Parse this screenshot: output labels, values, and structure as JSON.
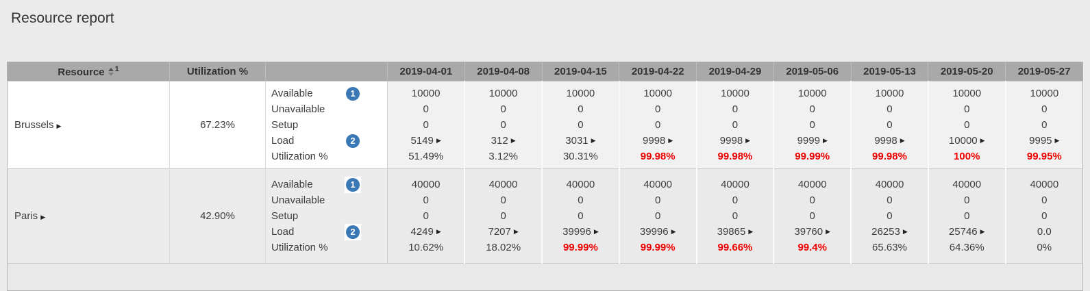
{
  "page": {
    "title": "Resource report"
  },
  "colors": {
    "header_bg": "#a9a9a9",
    "badge_blue": "#3a78b5",
    "alert_red": "#ee0000"
  },
  "table": {
    "header": {
      "resource_label": "Resource",
      "sort_order": "1",
      "utilization_label": "Utilization %",
      "dates": [
        "2019-04-01",
        "2019-04-08",
        "2019-04-15",
        "2019-04-22",
        "2019-04-29",
        "2019-05-06",
        "2019-05-13",
        "2019-05-20",
        "2019-05-27"
      ]
    },
    "metrics": [
      "Available",
      "Unavailable",
      "Setup",
      "Load",
      "Utilization %"
    ],
    "badges": [
      {
        "number": "1",
        "attached_to": "Available"
      },
      {
        "number": "2",
        "attached_to": "Load"
      }
    ],
    "icons": {
      "drill_arrow_glyph": "▶",
      "expand_arrow_glyph": "▶"
    },
    "rows": [
      {
        "resource": "Brussels",
        "utilization": "67.23%",
        "values": {
          "available": [
            "10000",
            "10000",
            "10000",
            "10000",
            "10000",
            "10000",
            "10000",
            "10000",
            "10000"
          ],
          "unavailable": [
            "0",
            "0",
            "0",
            "0",
            "0",
            "0",
            "0",
            "0",
            "0"
          ],
          "setup": [
            "0",
            "0",
            "0",
            "0",
            "0",
            "0",
            "0",
            "0",
            "0"
          ],
          "load": [
            "5149",
            "312",
            "3031",
            "9998",
            "9998",
            "9999",
            "9998",
            "10000",
            "9995"
          ],
          "load_drill": [
            true,
            true,
            true,
            true,
            true,
            true,
            true,
            true,
            true
          ],
          "utilization_pct": [
            "51.49%",
            "3.12%",
            "30.31%",
            "99.98%",
            "99.98%",
            "99.99%",
            "99.98%",
            "100%",
            "99.95%"
          ],
          "utilization_alert": [
            false,
            false,
            false,
            true,
            true,
            true,
            true,
            true,
            true
          ]
        }
      },
      {
        "resource": "Paris",
        "utilization": "42.90%",
        "values": {
          "available": [
            "40000",
            "40000",
            "40000",
            "40000",
            "40000",
            "40000",
            "40000",
            "40000",
            "40000"
          ],
          "unavailable": [
            "0",
            "0",
            "0",
            "0",
            "0",
            "0",
            "0",
            "0",
            "0"
          ],
          "setup": [
            "0",
            "0",
            "0",
            "0",
            "0",
            "0",
            "0",
            "0",
            "0"
          ],
          "load": [
            "4249",
            "7207",
            "39996",
            "39996",
            "39865",
            "39760",
            "26253",
            "25746",
            "0.0"
          ],
          "load_drill": [
            true,
            true,
            true,
            true,
            true,
            true,
            true,
            true,
            false
          ],
          "utilization_pct": [
            "10.62%",
            "18.02%",
            "99.99%",
            "99.99%",
            "99.66%",
            "99.4%",
            "65.63%",
            "64.36%",
            "0%"
          ],
          "utilization_alert": [
            false,
            false,
            true,
            true,
            true,
            true,
            false,
            false,
            false
          ]
        }
      }
    ]
  }
}
